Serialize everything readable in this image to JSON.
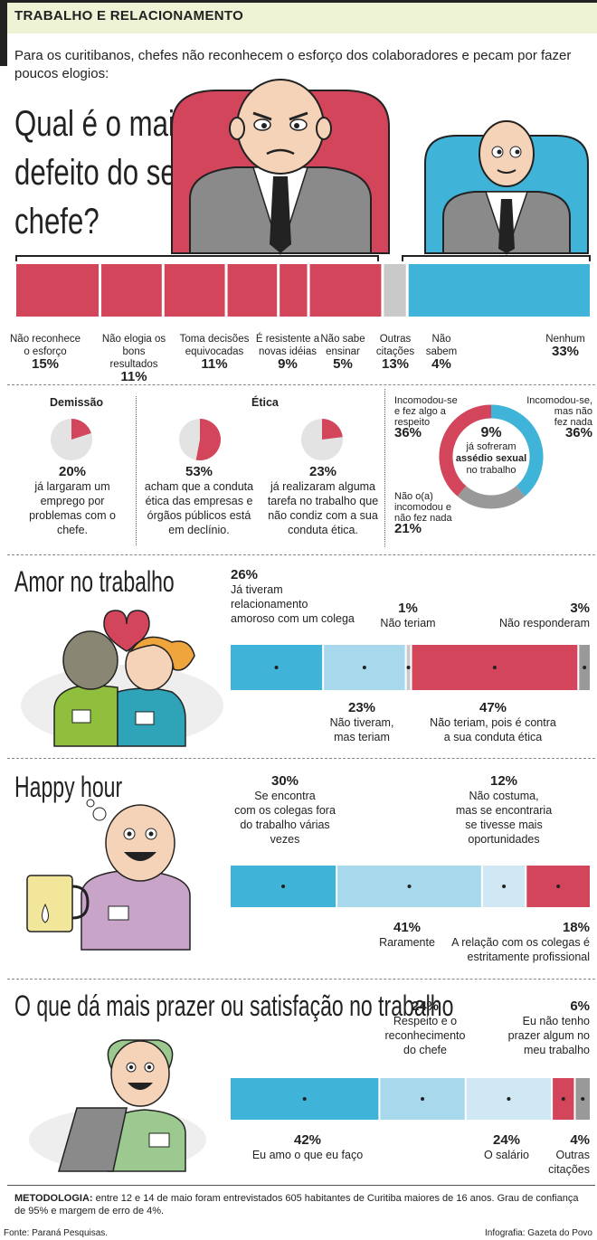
{
  "header": {
    "title": "TRABALHO E RELACIONAMENTO"
  },
  "intro": "Para os curitibanos, chefes não reconhecem o esforço dos colaboradores e pecam por fazer poucos elogios:",
  "question": {
    "line1": "Qual é o maior",
    "line2": "defeito do seu",
    "line3": "chefe?"
  },
  "colors": {
    "red": "#d2455a",
    "blue": "#40b3d8",
    "lightblue": "#a8d8ec",
    "palest": "#cfe8f3",
    "gray": "#c9c9c9",
    "darkgray": "#999999"
  },
  "chart_data": [
    {
      "type": "bar",
      "subtype": "stacked-horizontal",
      "title": "Qual é o maior defeito do seu chefe?",
      "categories": [
        "Não reconhece o esforço",
        "Não elogia os bons resultados",
        "Toma decisões equivocadas",
        "É resistente a novas idéias",
        "Não sabe ensinar",
        "Outras citações",
        "Não sabem",
        "Nenhum"
      ],
      "values": [
        15,
        11,
        11,
        9,
        5,
        13,
        4,
        33
      ],
      "labels": [
        "15%",
        "11%",
        "11%",
        "9%",
        "5%",
        "13%",
        "4%",
        "33%"
      ]
    },
    {
      "type": "pie",
      "title": "Demissão",
      "values": [
        20,
        80
      ],
      "label": "20%",
      "text": "já largaram um emprego por problemas com o chefe."
    },
    {
      "type": "pie",
      "title": "Ética",
      "values": [
        53,
        47
      ],
      "label": "53%",
      "text": "acham que a conduta ética das empresas e órgãos públicos está em declínio."
    },
    {
      "type": "pie",
      "title": "",
      "values": [
        23,
        77
      ],
      "label": "23%",
      "text": "já realizaram alguma tarefa no trabalho que não condiz com a sua conduta ética."
    },
    {
      "type": "pie",
      "subtype": "donut",
      "center": {
        "pct": "9%",
        "line1": "já sofreram",
        "line2": "assédio sexual",
        "line3": "no trabalho"
      },
      "categories": [
        "Incomodou-se, mas não fez nada",
        "Não o(a) incomodou e não fez nada",
        "Incomodou-se e fez algo a respeito"
      ],
      "values": [
        36,
        21,
        36
      ],
      "labels": [
        "36%",
        "21%",
        "36%"
      ]
    },
    {
      "type": "bar",
      "subtype": "stacked-horizontal",
      "title": "Amor no trabalho",
      "categories": [
        "Já tiveram relacionamento amoroso com um colega",
        "Não tiveram, mas teriam",
        "Não teriam",
        "Não teriam, pois é contra a sua conduta ética",
        "Não responderam"
      ],
      "values": [
        26,
        23,
        1,
        47,
        3
      ],
      "labels": [
        "26%",
        "23%",
        "1%",
        "47%",
        "3%"
      ]
    },
    {
      "type": "bar",
      "subtype": "stacked-horizontal",
      "title": "Happy hour",
      "categories": [
        "Se encontra com os colegas fora do trabalho várias vezes",
        "Raramente",
        "Não costuma, mas se encontraria se tivesse mais oportunidades",
        "A relação com os colegas é estritamente profissional"
      ],
      "values": [
        30,
        41,
        12,
        18
      ],
      "labels": [
        "30%",
        "41%",
        "12%",
        "18%"
      ]
    },
    {
      "type": "bar",
      "subtype": "stacked-horizontal",
      "title": "O que dá mais prazer ou satisfação no trabalho",
      "categories": [
        "Eu amo o que eu faço",
        "Respeito e o reconhecimento do chefe",
        "O salário",
        "Eu não tenho prazer algum no meu trabalho",
        "Outras citações"
      ],
      "values": [
        42,
        24,
        24,
        6,
        4
      ],
      "labels": [
        "42%",
        "24%",
        "24%",
        "6%",
        "4%"
      ]
    }
  ],
  "boss_labels": [
    {
      "l1": "Não reconhece",
      "l2": "o esforço",
      "pct": "15%"
    },
    {
      "l1": "Não elogia os",
      "l2": "bons resultados",
      "pct": "11%"
    },
    {
      "l1": "Toma decisões",
      "l2": "equivocadas",
      "pct": "11%"
    },
    {
      "l1": "É resistente a",
      "l2": "novas idéias",
      "pct": "9%"
    },
    {
      "l1": "Não sabe",
      "l2": "ensinar",
      "pct": "5%"
    },
    {
      "l1": "Outras",
      "l2": "citações",
      "pct": "13%"
    },
    {
      "l1": "Não",
      "l2": "sabem",
      "pct": "4%"
    },
    {
      "l1": "Nenhum",
      "l2": "",
      "pct": "33%"
    }
  ],
  "pies": {
    "demissao_title": "Demissão",
    "etica_title": "Ética"
  },
  "donut_labels": {
    "tl": {
      "l1": "Incomodou-se",
      "l2": "e fez algo a",
      "l3": "respeito",
      "pct": "36%"
    },
    "tr": {
      "l1": "Incomodou-se,",
      "l2": "mas não",
      "l3": "fez nada",
      "pct": "36%"
    },
    "bl": {
      "l1": "Não o(a)",
      "l2": "incomodou e",
      "l3": "não fez nada",
      "pct": "21%"
    }
  },
  "amor": {
    "title": "Amor no trabalho",
    "a": {
      "pct": "26%",
      "l1": "Já tiveram",
      "l2": "relacionamento",
      "l3": "amoroso com um colega"
    },
    "b": {
      "pct": "1%",
      "l1": "Não teriam"
    },
    "c": {
      "pct": "3%",
      "l1": "Não responderam"
    },
    "d": {
      "pct": "23%",
      "l1": "Não tiveram,",
      "l2": "mas teriam"
    },
    "e": {
      "pct": "47%",
      "l1": "Não teriam, pois é contra",
      "l2": "a sua conduta ética"
    }
  },
  "happy": {
    "title": "Happy hour",
    "a": {
      "pct": "30%",
      "l1": "Se encontra",
      "l2": "com os colegas fora",
      "l3": "do trabalho várias",
      "l4": "vezes"
    },
    "b": {
      "pct": "12%",
      "l1": "Não costuma,",
      "l2": "mas se encontraria",
      "l3": "se tivesse mais",
      "l4": "oportunidades"
    },
    "c": {
      "pct": "41%",
      "l1": "Raramente"
    },
    "d": {
      "pct": "18%",
      "l1": "A relação com os colegas é",
      "l2": "estritamente profissional"
    }
  },
  "prazer": {
    "title": "O que dá mais prazer ou satisfação no trabalho",
    "a": {
      "pct": "24%",
      "l1": "Respeito e o",
      "l2": "reconhecimento",
      "l3": "do chefe"
    },
    "b": {
      "pct": "6%",
      "l1": "Eu não tenho",
      "l2": "prazer algum no",
      "l3": "meu trabalho"
    },
    "c": {
      "pct": "42%",
      "l1": "Eu amo o que eu faço"
    },
    "d": {
      "pct": "24%",
      "l1": "O salário"
    },
    "e": {
      "pct": "4%",
      "l1": "Outras",
      "l2": "citações"
    }
  },
  "footer": {
    "method_label": "METODOLOGIA:",
    "method_text": "entre 12 e 14 de maio foram entrevistados 605 habitantes de Curitiba maiores de 16 anos. Grau de confiança de 95% e margem de erro de 4%.",
    "source": "Fonte: Paraná Pesquisas.",
    "credit": "Infografia: Gazeta do Povo"
  }
}
